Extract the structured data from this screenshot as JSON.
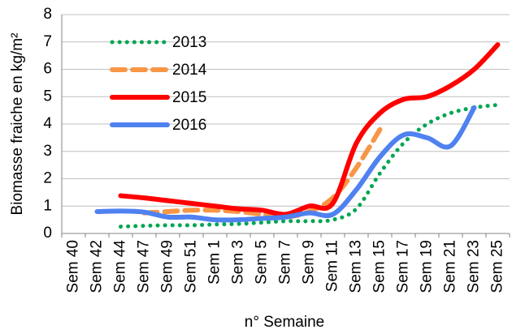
{
  "chart_data": {
    "type": "line",
    "x_label": "n° Semaine",
    "y_label": "Biomasse fraiche en kg/m²",
    "categories": [
      "Sem 40",
      "Sem 42",
      "Sem 44",
      "Sem 47",
      "Sem 49",
      "Sem 51",
      "Sem 1",
      "Sem 3",
      "Sem 5",
      "Sem 7",
      "Sem 9",
      "Sem 11",
      "Sem 13",
      "Sem 15",
      "Sem 17",
      "Sem 19",
      "Sem 21",
      "Sem 23",
      "Sem 25"
    ],
    "series": [
      {
        "name": "2013",
        "color": "#00a651",
        "dash": "dot",
        "values": [
          null,
          null,
          0.25,
          0.28,
          0.3,
          0.3,
          0.33,
          0.35,
          0.4,
          0.45,
          0.45,
          0.5,
          0.9,
          2.2,
          3.3,
          4.0,
          4.4,
          4.6,
          4.7
        ]
      },
      {
        "name": "2014",
        "color": "#f79646",
        "dash": "dash",
        "values": [
          null,
          null,
          null,
          0.75,
          0.8,
          0.85,
          0.85,
          0.8,
          0.7,
          0.6,
          0.8,
          1.3,
          2.4,
          3.8,
          null,
          null,
          null,
          null,
          null
        ]
      },
      {
        "name": "2015",
        "color": "#ff0000",
        "dash": "solid",
        "values": [
          null,
          null,
          1.38,
          1.3,
          1.2,
          1.1,
          1.0,
          0.9,
          0.85,
          0.7,
          1.0,
          1.1,
          3.3,
          4.4,
          4.9,
          5.0,
          5.4,
          6.0,
          6.9
        ]
      },
      {
        "name": "2016",
        "color": "#4f81f0",
        "dash": "solid",
        "values": [
          null,
          0.8,
          0.82,
          0.78,
          0.6,
          0.6,
          0.5,
          0.5,
          0.55,
          0.6,
          0.75,
          0.7,
          1.6,
          2.8,
          3.6,
          3.5,
          3.2,
          4.6,
          null
        ]
      }
    ],
    "ylim": [
      0,
      8
    ],
    "yticks": [
      0,
      1,
      2,
      3,
      4,
      5,
      6,
      7,
      8
    ],
    "grid": true,
    "legend": "top-left"
  }
}
